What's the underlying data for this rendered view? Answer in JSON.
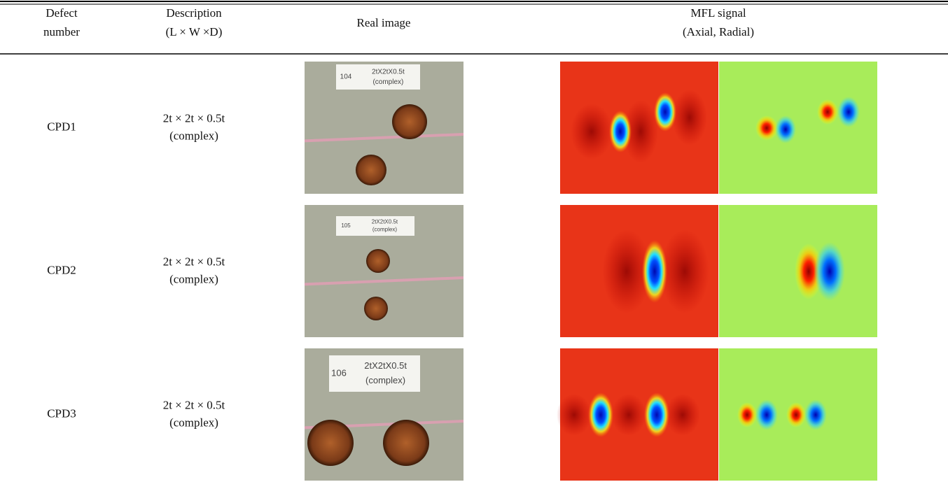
{
  "table": {
    "headers": [
      [
        "Defect",
        "number"
      ],
      [
        "Description",
        "(L × W ×D)"
      ],
      [
        "Real image"
      ],
      [
        "MFL signal",
        "(Axial, Radial)"
      ]
    ],
    "rows": [
      {
        "defect": "CPD1",
        "description": [
          "2t × 2t × 0.5t",
          "(complex)"
        ],
        "image_label": {
          "number": "104",
          "text": [
            "2tX2tX0.5t",
            "(complex)"
          ]
        }
      },
      {
        "defect": "CPD2",
        "description": [
          "2t × 2t × 0.5t",
          "(complex)"
        ],
        "image_label": {
          "number": "105",
          "text": [
            "2tX2tX0.5t",
            "(complex)"
          ]
        }
      },
      {
        "defect": "CPD3",
        "description": [
          "2t × 2t × 0.5t",
          "(complex)"
        ],
        "image_label": {
          "number": "106",
          "text": [
            "2tX2tX0.5t",
            "(complex)"
          ]
        }
      }
    ]
  }
}
